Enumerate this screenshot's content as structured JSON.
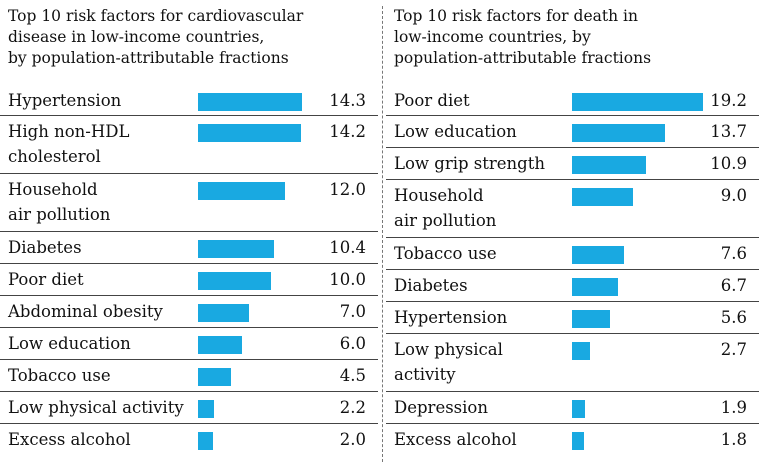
{
  "colors": {
    "bar": "#19a9e1",
    "rule": "#444444"
  },
  "chart_data": [
    {
      "type": "bar",
      "orientation": "horizontal",
      "title": "Top 10 risk factors for cardiovascular disease in low-income countries, by population-attributable fractions",
      "title_lines": [
        "Top 10 risk factors for cardiovascular",
        "disease in low-income countries,",
        "by population-attributable fractions"
      ],
      "categories": [
        "Hypertension",
        "High non-HDL cholesterol",
        "Household air pollution",
        "Diabetes",
        "Poor diet",
        "Abdominal obesity",
        "Low education",
        "Tobacco use",
        "Low physical activity",
        "Excess alcohol"
      ],
      "category_lines": [
        [
          "Hypertension"
        ],
        [
          "High non-HDL",
          "cholesterol"
        ],
        [
          "Household",
          "air pollution"
        ],
        [
          "Diabetes"
        ],
        [
          "Poor diet"
        ],
        [
          "Abdominal obesity"
        ],
        [
          "Low education"
        ],
        [
          "Tobacco use"
        ],
        [
          "Low physical activity"
        ],
        [
          "Excess alcohol"
        ]
      ],
      "values": [
        14.3,
        14.2,
        12.0,
        10.4,
        10.0,
        7.0,
        6.0,
        4.5,
        2.2,
        2.0
      ],
      "value_labels": [
        "14.3",
        "14.2",
        "12.0",
        "10.4",
        "10.0",
        "7.0",
        "6.0",
        "4.5",
        "2.2",
        "2.0"
      ],
      "xlim": [
        0,
        14.3
      ]
    },
    {
      "type": "bar",
      "orientation": "horizontal",
      "title": "Top 10 risk factors for death in low-income countries, by population-attributable fractions",
      "title_lines": [
        "Top 10 risk factors for death in",
        "low-income countries, by",
        "population-attributable fractions"
      ],
      "categories": [
        "Poor diet",
        "Low education",
        "Low grip strength",
        "Household air pollution",
        "Tobacco use",
        "Diabetes",
        "Hypertension",
        "Low physical activity",
        "Depression",
        "Excess alcohol"
      ],
      "category_lines": [
        [
          "Poor diet"
        ],
        [
          "Low education"
        ],
        [
          "Low grip strength"
        ],
        [
          "Household",
          "air pollution"
        ],
        [
          "Tobacco use"
        ],
        [
          "Diabetes"
        ],
        [
          "Hypertension"
        ],
        [
          "Low physical",
          "activity"
        ],
        [
          "Depression"
        ],
        [
          "Excess alcohol"
        ]
      ],
      "values": [
        19.2,
        13.7,
        10.9,
        9.0,
        7.6,
        6.7,
        5.6,
        2.7,
        1.9,
        1.8
      ],
      "value_labels": [
        "19.2",
        "13.7",
        "10.9",
        "9.0",
        "7.6",
        "6.7",
        "5.6",
        "2.7",
        "1.9",
        "1.8"
      ],
      "xlim": [
        0,
        19.2
      ]
    }
  ]
}
